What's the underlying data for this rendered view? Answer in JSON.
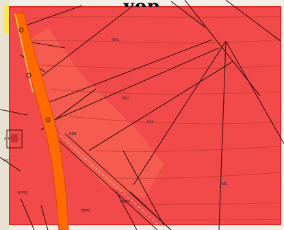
{
  "map": {
    "heading_fragment": "yop",
    "zone_fill": "#f24a4a",
    "zone_edge": "#e02a2a",
    "river_color": "#ff6a00",
    "boundary_color": "#3a1010",
    "contour_color": "#c83a2a",
    "labels": {
      "nord": "NDS",
      "mid": "DEV",
      "center": "DFE",
      "left_mid": "NDB",
      "right_low": "MD",
      "bottom_left": "BYRS",
      "bottom_center": "DBPK",
      "bottom_right": "DBPN",
      "side_a": "AHH",
      "side_b": "TXD"
    }
  }
}
